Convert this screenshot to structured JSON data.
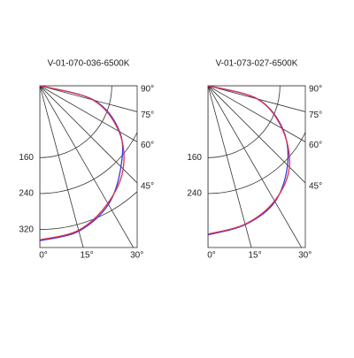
{
  "chart_data": [
    {
      "type": "polar",
      "title": "V-01-070-036-6500K",
      "angles": [
        0,
        15,
        30,
        45,
        60,
        75,
        90
      ],
      "rlim": [
        0,
        360
      ],
      "rticks": [
        160,
        240,
        320
      ],
      "angle_ticks": [
        {
          "value": 0,
          "label": "0°"
        },
        {
          "value": 15,
          "label": "15°"
        },
        {
          "value": 30,
          "label": "30°"
        },
        {
          "value": 45,
          "label": "45°"
        },
        {
          "value": 60,
          "label": "60°"
        },
        {
          "value": 75,
          "label": "75°"
        },
        {
          "value": 90,
          "label": "90°"
        }
      ],
      "series": [
        {
          "color": "#3a3adc",
          "values": [
            345,
            335,
            305,
            255,
            205,
            125,
            0
          ]
        },
        {
          "color": "#e0304a",
          "values": [
            343,
            333,
            302,
            262,
            203,
            122,
            0
          ]
        }
      ]
    },
    {
      "type": "polar",
      "title": "V-01-073-027-6500K",
      "angles": [
        0,
        15,
        30,
        45,
        60,
        75,
        90
      ],
      "rlim": [
        0,
        360
      ],
      "rticks": [
        160,
        240
      ],
      "angle_ticks": [
        {
          "value": 0,
          "label": "0°"
        },
        {
          "value": 15,
          "label": "15°"
        },
        {
          "value": 30,
          "label": "30°"
        },
        {
          "value": 45,
          "label": "45°"
        },
        {
          "value": 60,
          "label": "60°"
        },
        {
          "value": 75,
          "label": "75°"
        },
        {
          "value": 90,
          "label": "90°"
        }
      ],
      "series": [
        {
          "color": "#3a3adc",
          "values": [
            332,
            320,
            298,
            250,
            192,
            115,
            0
          ]
        },
        {
          "color": "#e0304a",
          "values": [
            330,
            319,
            296,
            256,
            190,
            113,
            0
          ]
        }
      ]
    }
  ]
}
